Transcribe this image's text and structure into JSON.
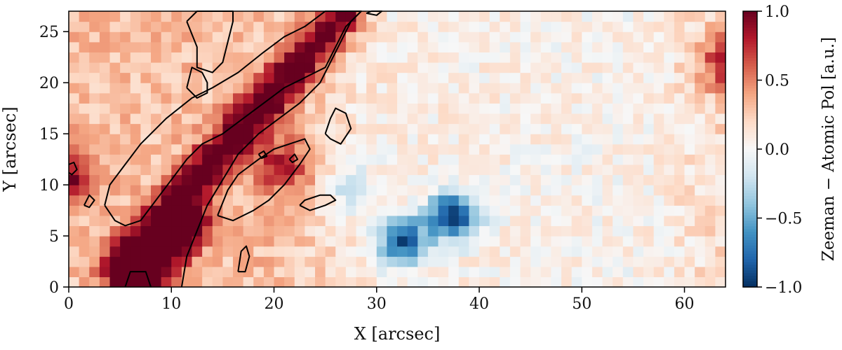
{
  "chart_data": {
    "type": "heatmap",
    "title": "",
    "xlabel": "X [arcsec]",
    "ylabel": "Y [arcsec]",
    "xlim": [
      0,
      64
    ],
    "ylim": [
      0,
      27
    ],
    "xticks": [
      0,
      10,
      20,
      30,
      40,
      50,
      60
    ],
    "yticks": [
      0,
      5,
      10,
      15,
      20,
      25
    ],
    "colorbar": {
      "label": "Zeeman − Atomic Pol [a.u.]",
      "range": [
        -1.0,
        1.0
      ],
      "ticks": [
        1.0,
        0.5,
        0.0,
        -0.5,
        -1.0
      ],
      "tick_labels": [
        "1.0",
        "0.5",
        "0.0",
        "−0.5",
        "−1.0"
      ],
      "colormap": "RdBu_r",
      "colors": [
        "#053061",
        "#2166ac",
        "#4393c3",
        "#92c5de",
        "#d1e5f0",
        "#f7f7f7",
        "#fddbc7",
        "#f4a582",
        "#d6604d",
        "#b2182b",
        "#67001f"
      ]
    },
    "features": [
      {
        "kind": "positive-band",
        "from": [
          5,
          2
        ],
        "to": [
          27,
          27
        ],
        "peak": 0.9
      },
      {
        "kind": "positive-band",
        "from": [
          7,
          0
        ],
        "to": [
          12,
          6
        ],
        "peak": 0.8
      },
      {
        "kind": "positive-blob",
        "center": [
          21,
          12
        ],
        "peak": 0.5
      },
      {
        "kind": "negative-blob",
        "center": [
          32.5,
          4.5
        ],
        "peak": -0.95
      },
      {
        "kind": "negative-blob",
        "center": [
          37.5,
          7
        ],
        "peak": -1.0
      },
      {
        "kind": "negative-blob",
        "center": [
          27.5,
          10
        ],
        "peak": -0.35
      },
      {
        "kind": "positive-edge",
        "center": [
          0,
          11
        ],
        "peak": 0.6
      },
      {
        "kind": "positive-edge",
        "center": [
          64,
          22
        ],
        "peak": 0.6
      }
    ],
    "contours": [
      [
        [
          3.5,
          8
        ],
        [
          4,
          10
        ],
        [
          5.5,
          12
        ],
        [
          7,
          14
        ],
        [
          9.5,
          16.5
        ],
        [
          12,
          18.5
        ],
        [
          14,
          19.5
        ],
        [
          16.5,
          21
        ],
        [
          19,
          23
        ],
        [
          21,
          24.5
        ],
        [
          23,
          25.5
        ],
        [
          25,
          27
        ],
        [
          28.5,
          27
        ],
        [
          27,
          25.5
        ],
        [
          26,
          23.5
        ],
        [
          25,
          21.5
        ],
        [
          23,
          20.5
        ],
        [
          21,
          19.5
        ],
        [
          19,
          18
        ],
        [
          17,
          16.5
        ],
        [
          15,
          15
        ],
        [
          13,
          14
        ],
        [
          11.5,
          12.5
        ],
        [
          10,
          10.5
        ],
        [
          8.5,
          8.5
        ],
        [
          7,
          6.5
        ],
        [
          5.5,
          6
        ],
        [
          4.5,
          6.5
        ],
        [
          3.5,
          8
        ]
      ],
      [
        [
          5.5,
          0
        ],
        [
          6,
          1.5
        ],
        [
          7.5,
          1.5
        ],
        [
          8,
          0
        ]
      ],
      [
        [
          11,
          0
        ],
        [
          11.5,
          3
        ],
        [
          12.5,
          5.5
        ],
        [
          13.5,
          8
        ],
        [
          15,
          10.5
        ],
        [
          16.5,
          13
        ],
        [
          18.5,
          15
        ],
        [
          20.5,
          16.5
        ],
        [
          22.5,
          18
        ],
        [
          24.5,
          20
        ],
        [
          25.5,
          22
        ],
        [
          26.5,
          24
        ],
        [
          27.5,
          26
        ],
        [
          28.5,
          27
        ]
      ],
      [
        [
          11.5,
          26
        ],
        [
          12.5,
          23.5
        ],
        [
          12.5,
          21.5
        ],
        [
          14,
          21
        ],
        [
          15,
          22
        ],
        [
          15.5,
          24
        ],
        [
          16,
          26
        ],
        [
          16,
          27
        ],
        [
          14,
          27
        ],
        [
          12.5,
          27
        ],
        [
          11.5,
          26
        ]
      ],
      [
        [
          11.5,
          19.5
        ],
        [
          12,
          21.5
        ],
        [
          13,
          21
        ],
        [
          13.5,
          20
        ],
        [
          13.5,
          19
        ],
        [
          12.5,
          18.5
        ],
        [
          11.5,
          19.5
        ]
      ],
      [
        [
          14.5,
          7
        ],
        [
          15.5,
          9.5
        ],
        [
          16.5,
          11
        ],
        [
          18.5,
          12.5
        ],
        [
          20,
          13.5
        ],
        [
          21.5,
          14
        ],
        [
          23,
          14.5
        ],
        [
          23.5,
          13.5
        ],
        [
          22.5,
          12
        ],
        [
          21,
          10
        ],
        [
          19.5,
          8.5
        ],
        [
          18,
          7.5
        ],
        [
          16,
          6.5
        ],
        [
          14.5,
          7
        ]
      ],
      [
        [
          25,
          15
        ],
        [
          25.5,
          16.5
        ],
        [
          26,
          17.5
        ],
        [
          27,
          17
        ],
        [
          27.5,
          15.5
        ],
        [
          26.5,
          14
        ],
        [
          25.5,
          14.5
        ],
        [
          25,
          15
        ]
      ],
      [
        [
          22.5,
          8
        ],
        [
          23,
          8.5
        ],
        [
          24.5,
          9
        ],
        [
          25.5,
          9
        ],
        [
          26,
          8.5
        ],
        [
          25,
          8
        ],
        [
          23.5,
          7.5
        ],
        [
          22.5,
          8
        ]
      ],
      [
        [
          16.5,
          1.5
        ],
        [
          16.8,
          3.5
        ],
        [
          17.3,
          4
        ],
        [
          17.6,
          3
        ],
        [
          17.2,
          1.5
        ],
        [
          16.5,
          1.5
        ]
      ],
      [
        [
          1.5,
          8
        ],
        [
          2,
          9
        ],
        [
          2.5,
          8.5
        ],
        [
          2,
          7.8
        ],
        [
          1.5,
          8
        ]
      ],
      [
        [
          0,
          12
        ],
        [
          0.5,
          12.2
        ],
        [
          0.8,
          11.5
        ],
        [
          0.3,
          11
        ],
        [
          0,
          11.2
        ]
      ],
      [
        [
          21.5,
          12.5
        ],
        [
          22,
          13
        ],
        [
          22.3,
          12.5
        ],
        [
          21.8,
          12.2
        ],
        [
          21.5,
          12.5
        ]
      ],
      [
        [
          18.5,
          13
        ],
        [
          19,
          13.3
        ],
        [
          19.3,
          12.8
        ],
        [
          18.8,
          12.6
        ],
        [
          18.5,
          13
        ]
      ],
      [
        [
          29,
          26.8
        ],
        [
          29.5,
          27
        ],
        [
          30.5,
          27
        ],
        [
          30,
          26.6
        ],
        [
          29,
          26.8
        ]
      ]
    ]
  }
}
